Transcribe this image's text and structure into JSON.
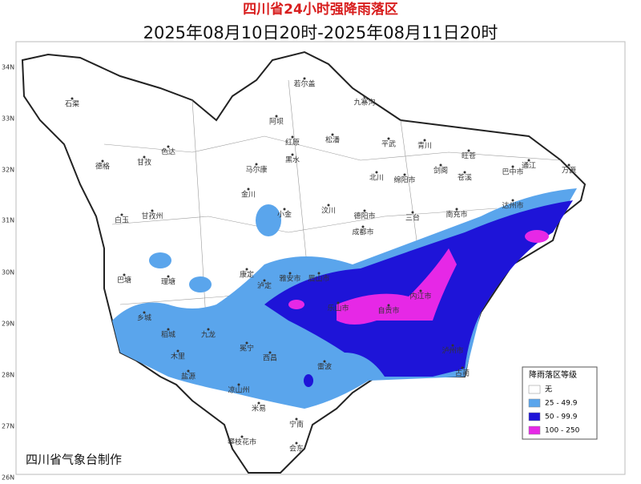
{
  "header": {
    "title": "四川省24小时强降雨落区",
    "subtitle": "2025年08月10日20时-2025年08月11日20时"
  },
  "latitudes": [
    "34N",
    "33N",
    "32N",
    "31N",
    "30N",
    "29N",
    "28N",
    "27N",
    "26N"
  ],
  "places": [
    "石渠",
    "若尔盖",
    "九寨沟",
    "阿坝",
    "红原",
    "松潘",
    "青川",
    "平武",
    "旺苍",
    "通江",
    "万源",
    "德格",
    "甘孜",
    "色达",
    "马尔康",
    "黑水",
    "北川",
    "绵阳市",
    "剑阁",
    "苍溪",
    "巴中市",
    "白玉",
    "甘孜州",
    "金川",
    "小金",
    "汶川",
    "德阳市",
    "三台",
    "南充市",
    "达州市",
    "巴塘",
    "理塘",
    "康定",
    "泸定",
    "雅安市",
    "成都市",
    "眉山市",
    "乐山市",
    "内江市",
    "自贡市",
    "泸州市",
    "古蔺",
    "乡城",
    "稻城",
    "九龙",
    "冕宁",
    "西昌",
    "凉山州",
    "木里",
    "盐源",
    "米易",
    "攀枝花市",
    "会东",
    "宁南",
    "雷波"
  ],
  "legend": {
    "title": "降雨落区等级",
    "items": [
      {
        "label": "无",
        "color": "#ffffff"
      },
      {
        "label": "25 - 49.9",
        "color": "#5aa5ec"
      },
      {
        "label": "50 - 99.9",
        "color": "#1e14d8"
      },
      {
        "label": "100 - 250",
        "color": "#e628e6"
      }
    ]
  },
  "credit": "四川省气象台制作"
}
